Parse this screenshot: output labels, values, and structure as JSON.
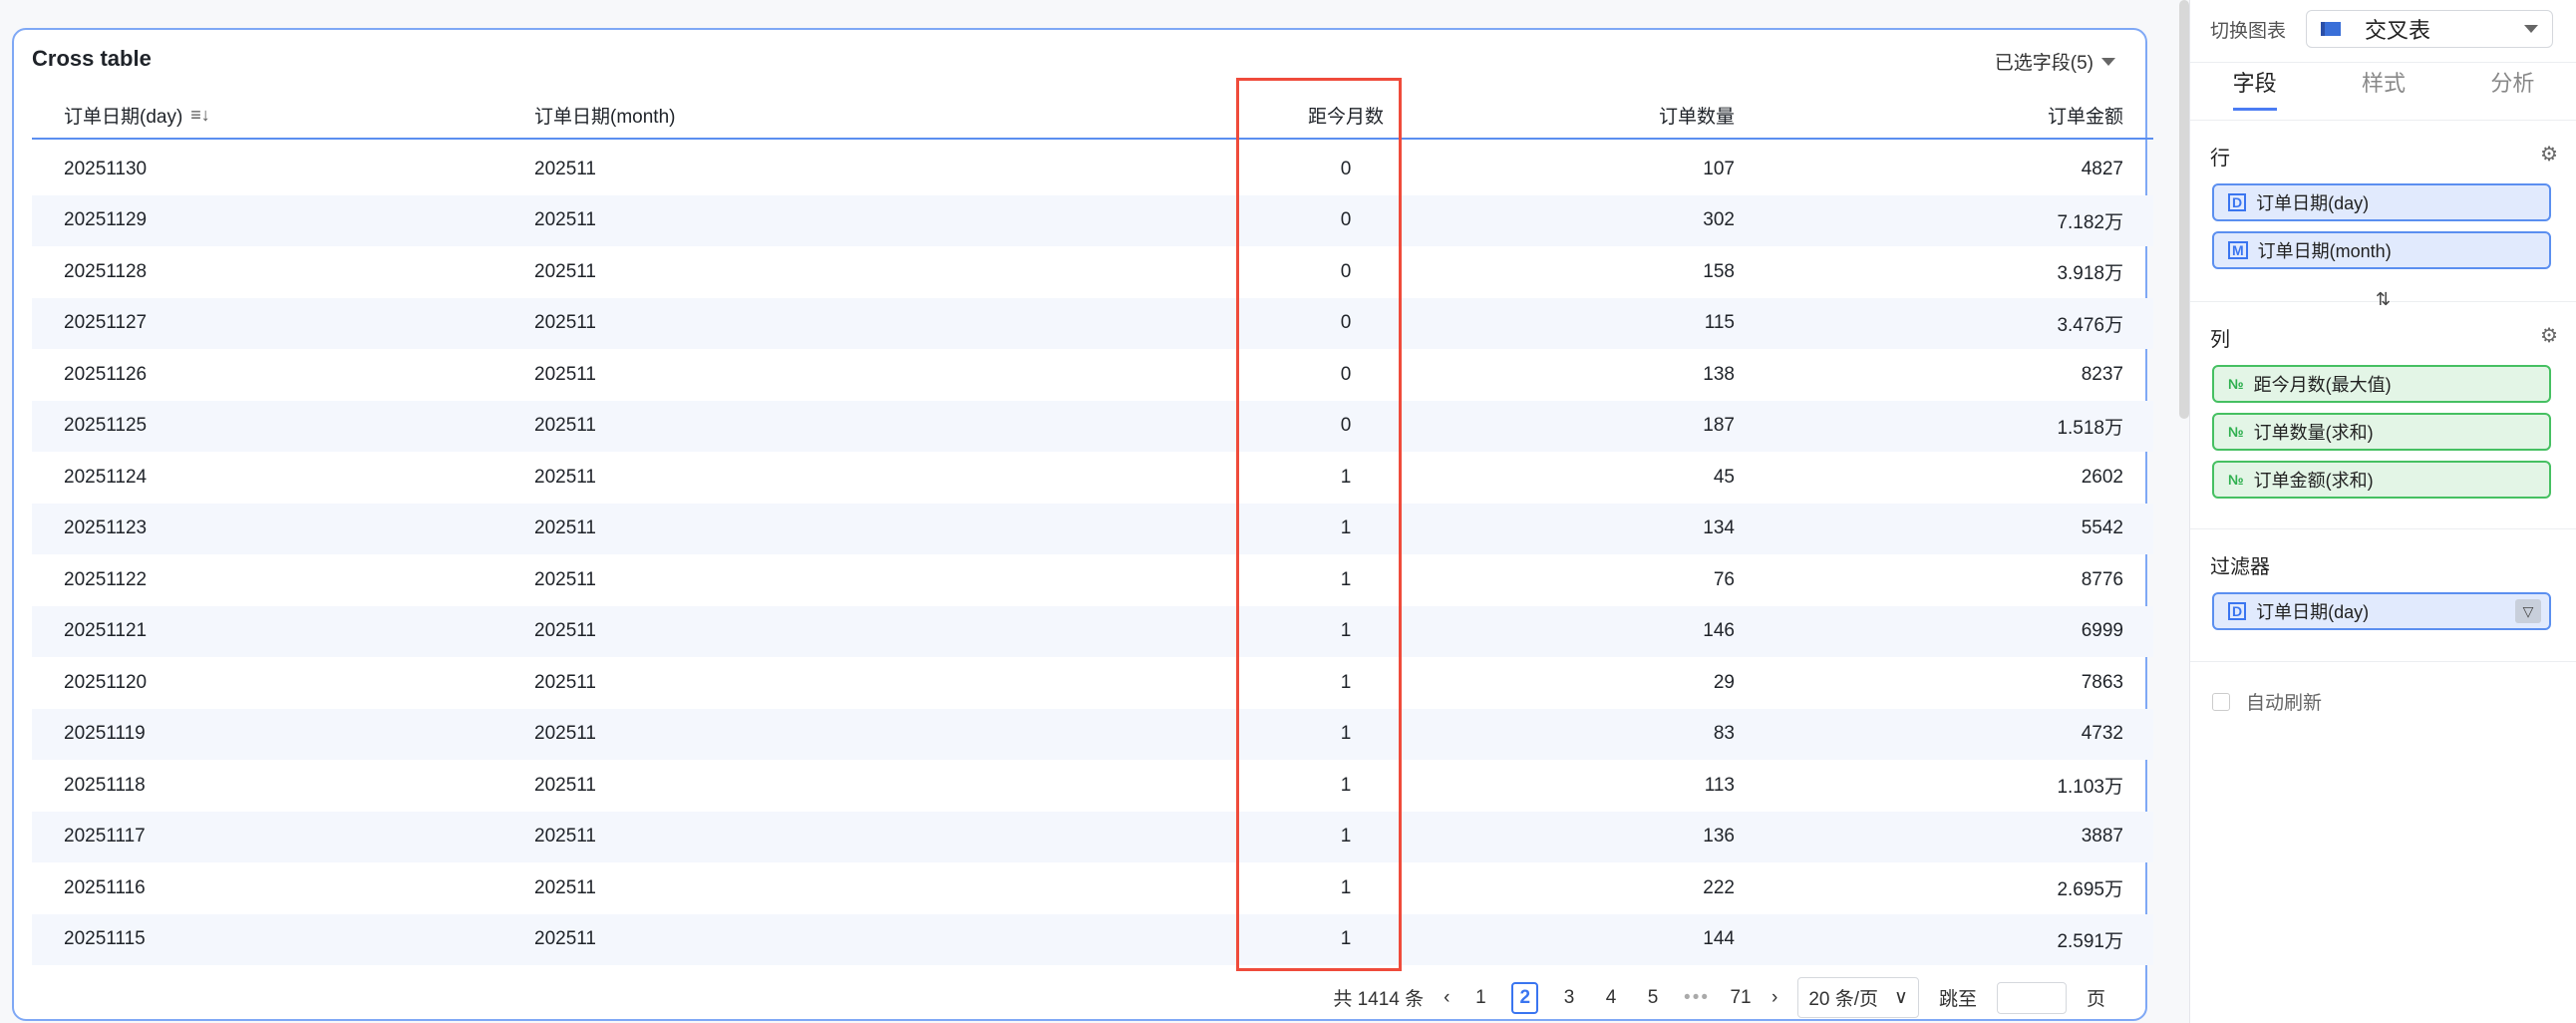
{
  "card": {
    "title": "Cross table",
    "selected_fields": "已选字段(5)"
  },
  "table": {
    "headers": [
      "订单日期(day)",
      "订单日期(month)",
      "距今月数",
      "订单数量",
      "订单金额"
    ],
    "rows": [
      [
        "20251130",
        "202511",
        "0",
        "107",
        "4827"
      ],
      [
        "20251129",
        "202511",
        "0",
        "302",
        "7.182万"
      ],
      [
        "20251128",
        "202511",
        "0",
        "158",
        "3.918万"
      ],
      [
        "20251127",
        "202511",
        "0",
        "115",
        "3.476万"
      ],
      [
        "20251126",
        "202511",
        "0",
        "138",
        "8237"
      ],
      [
        "20251125",
        "202511",
        "0",
        "187",
        "1.518万"
      ],
      [
        "20251124",
        "202511",
        "1",
        "45",
        "2602"
      ],
      [
        "20251123",
        "202511",
        "1",
        "134",
        "5542"
      ],
      [
        "20251122",
        "202511",
        "1",
        "76",
        "8776"
      ],
      [
        "20251121",
        "202511",
        "1",
        "146",
        "6999"
      ],
      [
        "20251120",
        "202511",
        "1",
        "29",
        "7863"
      ],
      [
        "20251119",
        "202511",
        "1",
        "83",
        "4732"
      ],
      [
        "20251118",
        "202511",
        "1",
        "113",
        "1.103万"
      ],
      [
        "20251117",
        "202511",
        "1",
        "136",
        "3887"
      ],
      [
        "20251116",
        "202511",
        "1",
        "222",
        "2.695万"
      ],
      [
        "20251115",
        "202511",
        "1",
        "144",
        "2.591万"
      ]
    ]
  },
  "pagination": {
    "total": "共 1414 条",
    "pages": [
      "1",
      "2",
      "3",
      "4",
      "5",
      "71"
    ],
    "current": "2",
    "page_size": "20 条/页",
    "jump_label": "跳至",
    "page_unit": "页"
  },
  "panel": {
    "switch_label": "切换图表",
    "chart_type": "交叉表",
    "tabs": [
      "字段",
      "样式",
      "分析"
    ],
    "rows_label": "行",
    "rows": [
      {
        "icon": "D",
        "label": "订单日期(day)"
      },
      {
        "icon": "M",
        "label": "订单日期(month)"
      }
    ],
    "cols_label": "列",
    "cols": [
      {
        "icon": "№",
        "label": "距今月数(最大值)"
      },
      {
        "icon": "№",
        "label": "订单数量(求和)"
      },
      {
        "icon": "№",
        "label": "订单金额(求和)"
      }
    ],
    "filter_label": "过滤器",
    "filters": [
      {
        "icon": "D",
        "label": "订单日期(day)"
      }
    ],
    "auto_refresh": "自动刷新"
  },
  "colors": {
    "accent": "#3a75f0",
    "highlight_box": "#ef4b3b",
    "dimension_pill": "#e1eafd",
    "measure_pill": "#e3f5e6"
  }
}
